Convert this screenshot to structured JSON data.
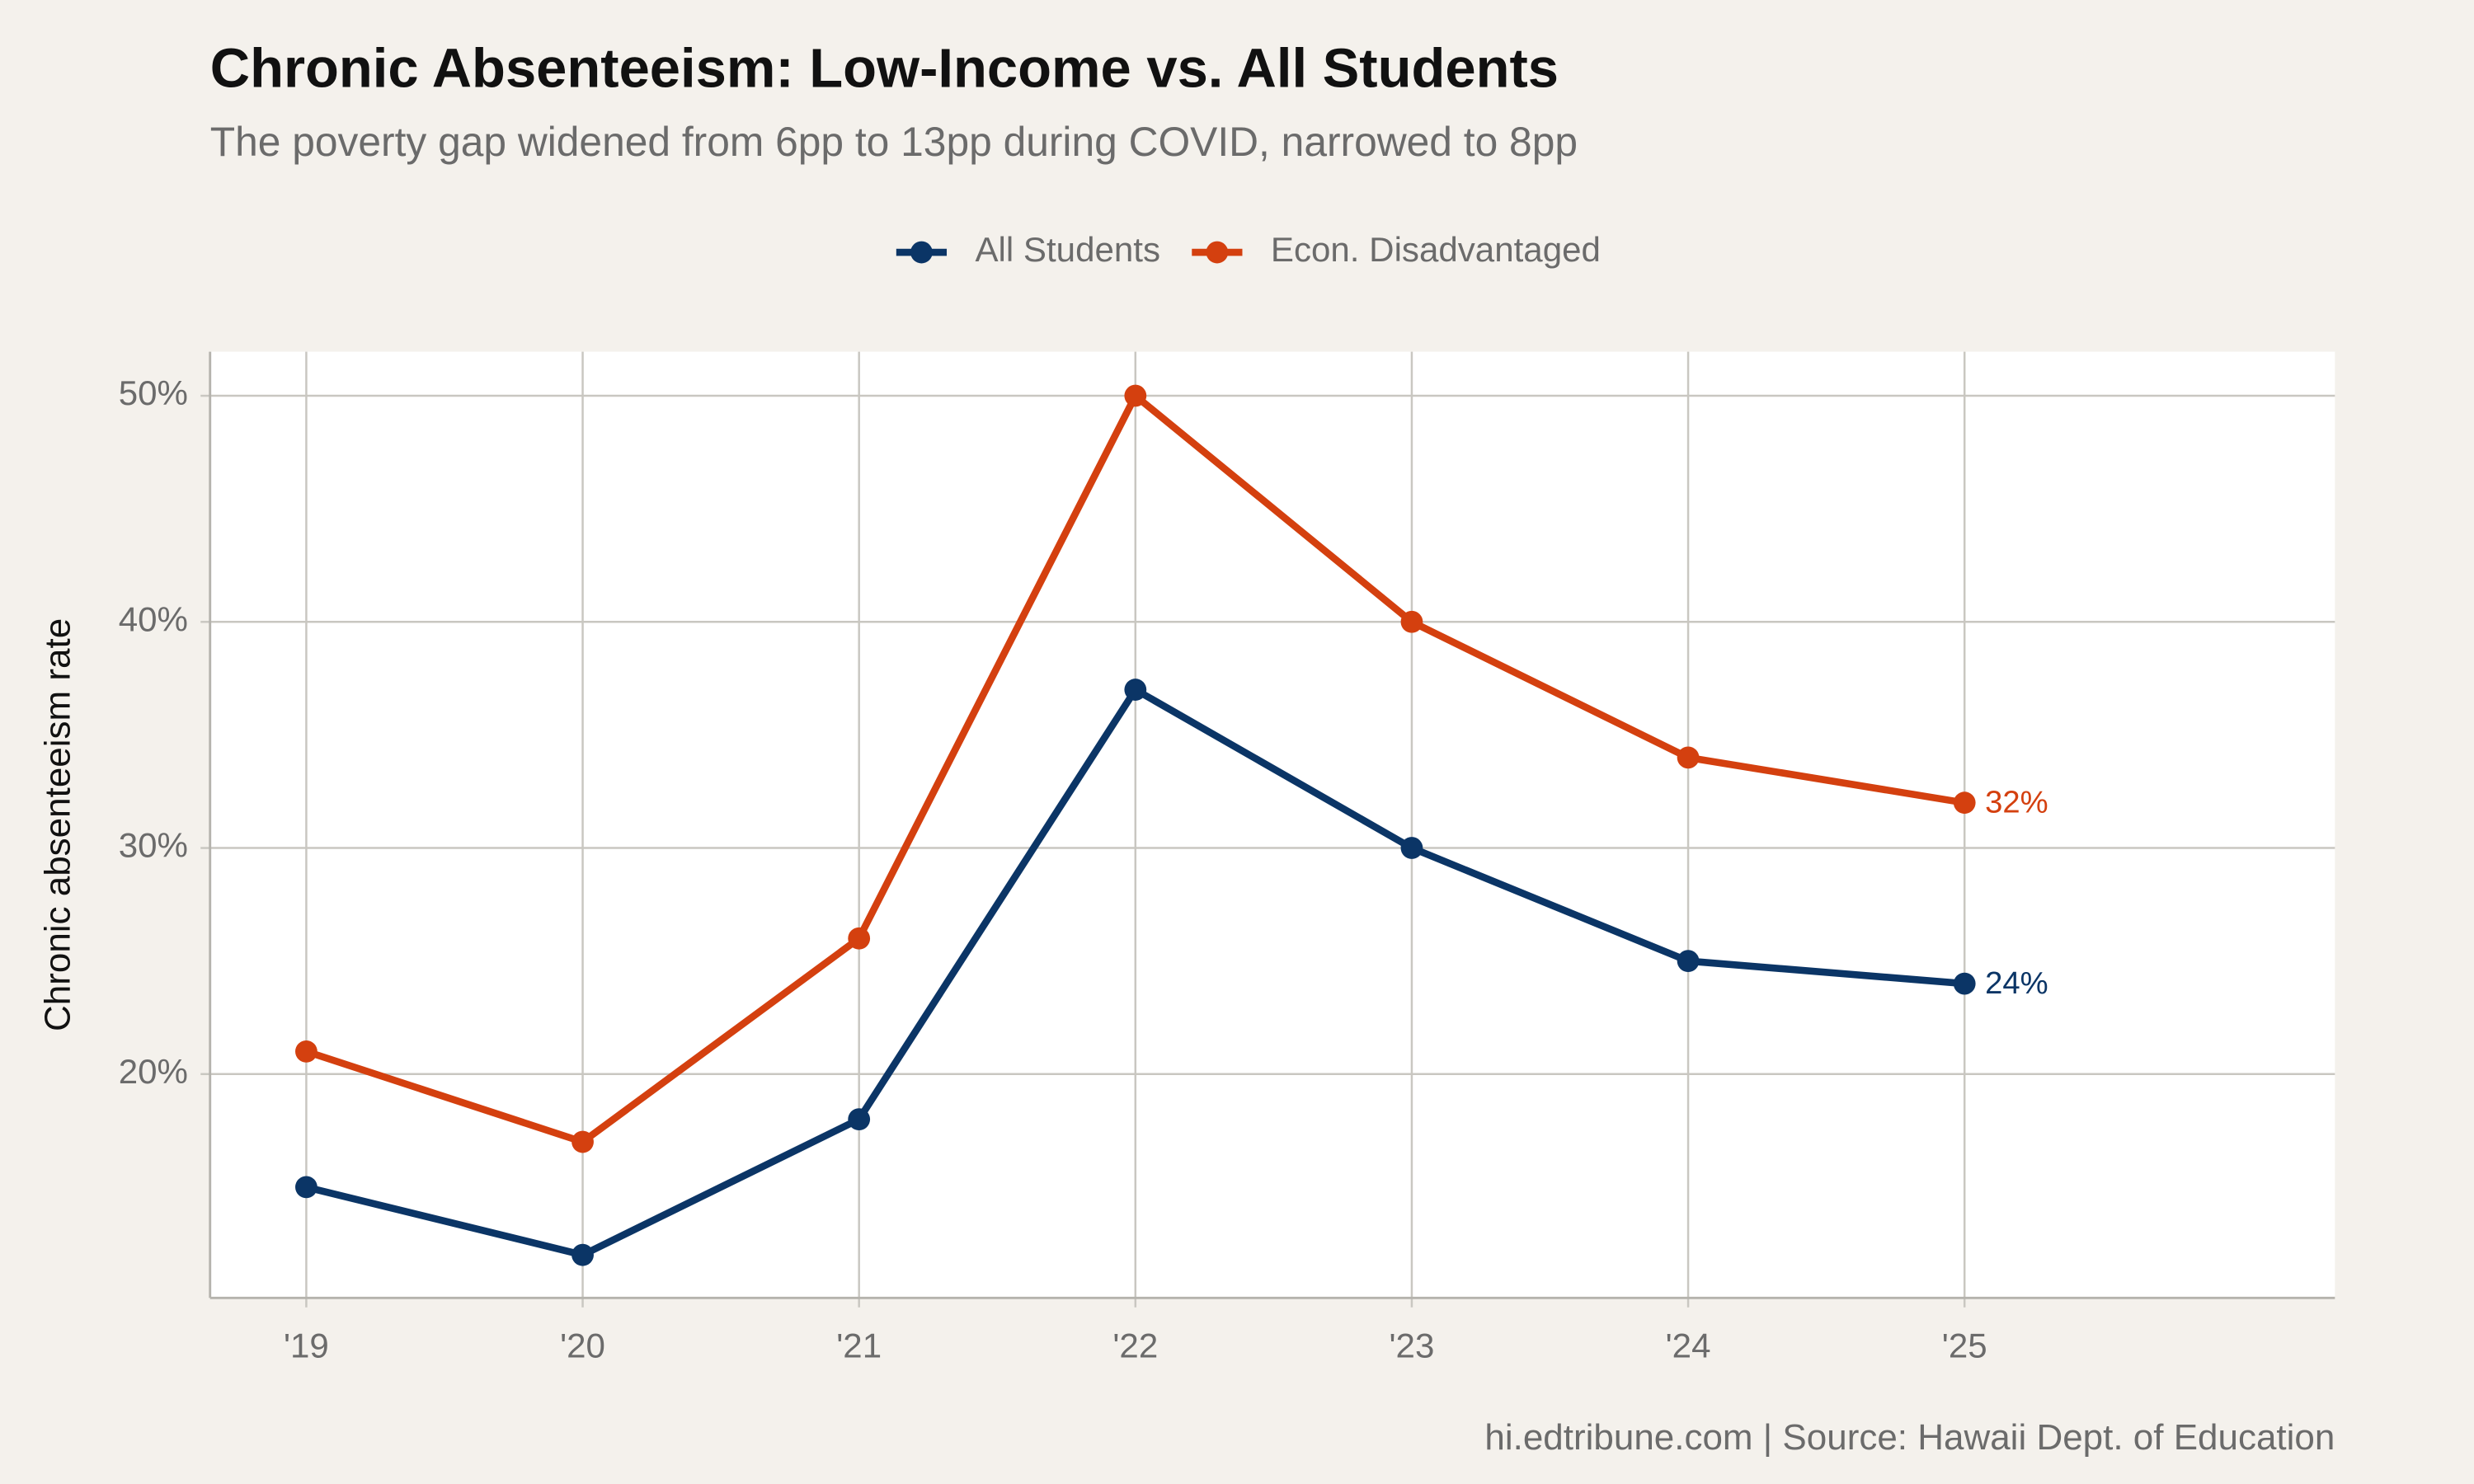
{
  "chart_data": {
    "type": "line",
    "title": "Chronic Absenteeism: Low-Income vs. All Students",
    "subtitle": "The poverty gap widened from 6pp to 13pp during COVID, narrowed to 8pp",
    "y_label": "Chronic absenteeism rate",
    "caption": "hi.edtribune.com | Source: Hawaii Dept. of Education",
    "categories": [
      "'19",
      "'20",
      "'21",
      "'22",
      "'23",
      "'24",
      "'25"
    ],
    "series": [
      {
        "name": "All Students",
        "color": "#0b3566",
        "values": [
          15,
          12,
          18,
          37,
          30,
          25,
          24
        ],
        "value_labels": [
          null,
          null,
          null,
          null,
          null,
          null,
          "24%"
        ]
      },
      {
        "name": "Econ. Disadvantaged",
        "color": "#d4400f",
        "values": [
          21,
          17,
          26,
          50,
          40,
          34,
          32
        ],
        "value_labels": [
          null,
          null,
          null,
          null,
          null,
          null,
          "32%"
        ]
      }
    ],
    "ylim": [
      10.1,
      51.95
    ],
    "yticks": [
      {
        "value": 20,
        "label": "20%"
      },
      {
        "value": 30,
        "label": "30%"
      },
      {
        "value": 40,
        "label": "40%"
      },
      {
        "value": 50,
        "label": "50%"
      }
    ],
    "grid": true,
    "legend": "top"
  }
}
